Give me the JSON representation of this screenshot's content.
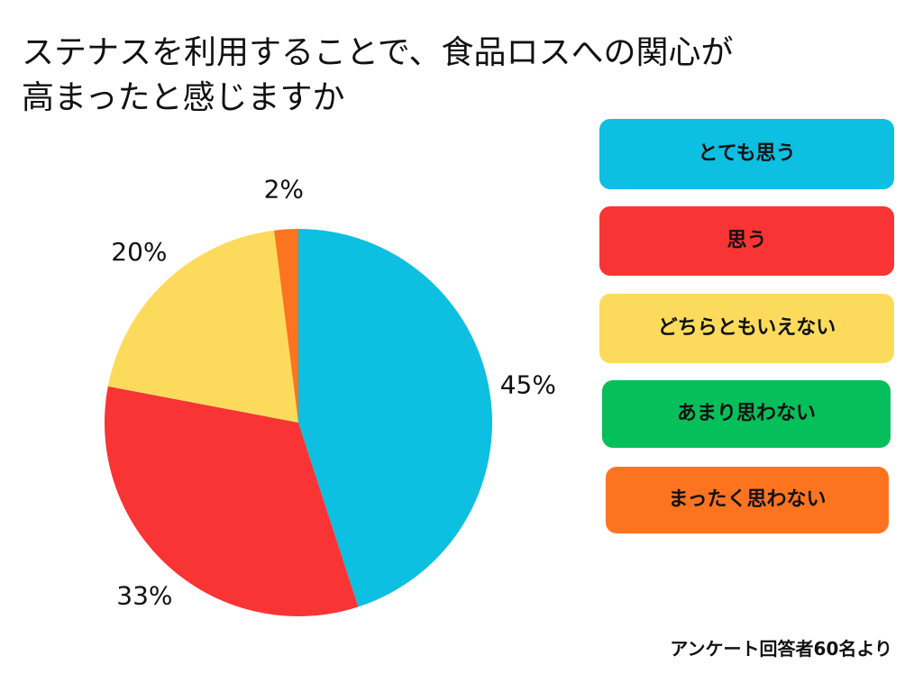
{
  "chart_data": {
    "type": "pie",
    "title": "ステナスを利用することで、食品ロスへの関心が高まったと感じますか",
    "categories": [
      "とても思う",
      "思う",
      "どちらともいえない",
      "あまり思わない",
      "まったく思わない"
    ],
    "values": [
      45,
      33,
      20,
      0,
      2
    ],
    "value_labels": [
      "45%",
      "33%",
      "20%",
      null,
      "2%"
    ],
    "colors": [
      "#0dbfe0",
      "#f83434",
      "#fcdb5c",
      "#05bf5b",
      "#fd7420"
    ],
    "note": "アンケート回答者60名より"
  }
}
